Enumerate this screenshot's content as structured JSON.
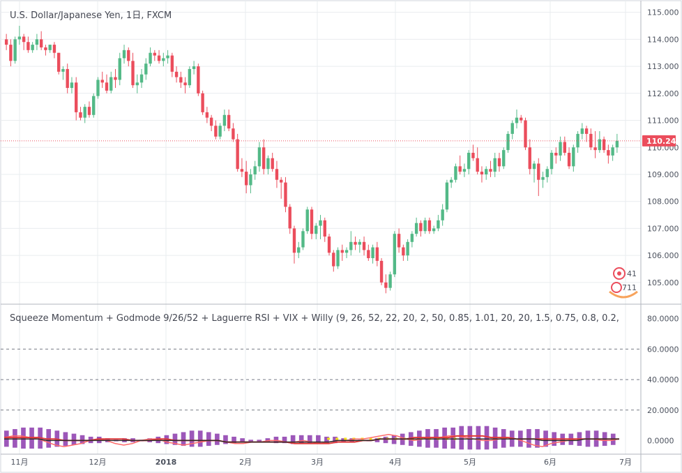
{
  "main_title": "U.S. Dollar/Japanese Yen, 1日, FXCM",
  "indicator_title": "Squeeze Momentum + Godmode 9/26/52 + Laguerre RSI + VIX + Willy (9, 26, 52, 22, 20, 2, 50, 0.85, 1.01, 20, 20, 1.5, 0.75, 0.8, 0.2,",
  "last_price_label": "110.241",
  "badges": {
    "top": "41",
    "bottom": "711"
  },
  "colors": {
    "up": "#53b987",
    "down": "#eb4d5c",
    "last_price": "#eb4d5c",
    "grid": "#e9ecef",
    "axis_line": "#b2b5be",
    "dash": "#787b86",
    "osc_a": "#2b2b2b",
    "osc_b": "#ff6b6b",
    "osc_c": "#e03a3a",
    "osc_d": "#3a8a3a",
    "osc_hist": "#7b1fa2",
    "yellow_dots": "#f5e11a"
  },
  "chart_data": [
    {
      "type": "candlestick",
      "title": "U.S. Dollar/Japanese Yen, 1日, FXCM",
      "ylim": [
        104.3,
        115.3
      ],
      "y_ticks": [
        "115.000",
        "114.000",
        "113.000",
        "112.000",
        "111.000",
        "110.000",
        "109.000",
        "108.000",
        "107.000",
        "106.000",
        "105.000"
      ],
      "x_ticks": [
        "11月",
        "12月",
        "2018",
        "2月",
        "3月",
        "4月",
        "5月",
        "6月",
        "7月"
      ],
      "last_price": 110.241,
      "candles": [
        [
          114.0,
          114.2,
          113.6,
          113.8
        ],
        [
          113.8,
          114.0,
          113.0,
          113.2
        ],
        [
          113.2,
          114.1,
          113.1,
          114.0
        ],
        [
          114.0,
          114.5,
          113.8,
          114.1
        ],
        [
          114.1,
          114.2,
          113.6,
          113.9
        ],
        [
          113.9,
          114.1,
          113.5,
          113.6
        ],
        [
          113.6,
          113.9,
          113.5,
          113.8
        ],
        [
          113.8,
          114.2,
          113.6,
          114.0
        ],
        [
          114.0,
          114.3,
          113.6,
          113.7
        ],
        [
          113.7,
          113.8,
          113.4,
          113.6
        ],
        [
          113.6,
          113.8,
          113.5,
          113.8
        ],
        [
          113.8,
          113.9,
          113.3,
          113.5
        ],
        [
          113.5,
          113.5,
          112.7,
          112.8
        ],
        [
          112.8,
          113.0,
          112.5,
          112.9
        ],
        [
          112.9,
          113.1,
          112.0,
          112.2
        ],
        [
          112.2,
          112.6,
          112.0,
          112.4
        ],
        [
          112.4,
          112.6,
          111.0,
          111.3
        ],
        [
          111.3,
          111.5,
          111.0,
          111.1
        ],
        [
          111.1,
          111.6,
          110.9,
          111.5
        ],
        [
          111.5,
          111.7,
          111.1,
          111.2
        ],
        [
          111.2,
          112.0,
          111.1,
          111.9
        ],
        [
          111.9,
          112.6,
          111.8,
          112.5
        ],
        [
          112.5,
          112.8,
          112.2,
          112.4
        ],
        [
          112.4,
          112.7,
          112.0,
          112.1
        ],
        [
          112.1,
          112.8,
          112.0,
          112.6
        ],
        [
          112.6,
          112.9,
          112.2,
          112.5
        ],
        [
          112.5,
          113.5,
          112.3,
          113.3
        ],
        [
          113.3,
          113.8,
          113.1,
          113.6
        ],
        [
          113.6,
          113.7,
          113.0,
          113.2
        ],
        [
          113.2,
          113.5,
          112.2,
          112.3
        ],
        [
          112.3,
          112.7,
          112.0,
          112.4
        ],
        [
          112.4,
          112.9,
          112.2,
          112.7
        ],
        [
          112.7,
          113.3,
          112.5,
          113.1
        ],
        [
          113.1,
          113.7,
          113.0,
          113.5
        ],
        [
          113.5,
          113.6,
          113.2,
          113.4
        ],
        [
          113.4,
          113.6,
          113.1,
          113.2
        ],
        [
          113.2,
          113.5,
          113.0,
          113.3
        ],
        [
          113.3,
          113.6,
          113.1,
          113.4
        ],
        [
          113.4,
          113.5,
          112.6,
          112.8
        ],
        [
          112.8,
          113.0,
          112.4,
          112.6
        ],
        [
          112.6,
          112.8,
          112.2,
          112.4
        ],
        [
          112.4,
          112.6,
          112.0,
          112.3
        ],
        [
          112.3,
          113.0,
          112.2,
          112.9
        ],
        [
          112.9,
          113.2,
          112.7,
          113.0
        ],
        [
          113.0,
          113.1,
          111.9,
          112.0
        ],
        [
          112.0,
          112.1,
          111.2,
          111.3
        ],
        [
          111.3,
          111.5,
          110.9,
          111.1
        ],
        [
          111.1,
          111.2,
          110.6,
          110.8
        ],
        [
          110.8,
          111.0,
          110.3,
          110.4
        ],
        [
          110.4,
          110.9,
          110.3,
          110.8
        ],
        [
          110.8,
          111.4,
          110.6,
          111.2
        ],
        [
          111.2,
          111.4,
          110.6,
          110.7
        ],
        [
          110.7,
          110.9,
          110.2,
          110.3
        ],
        [
          110.3,
          110.5,
          109.1,
          109.2
        ],
        [
          109.2,
          109.6,
          108.9,
          109.1
        ],
        [
          109.1,
          109.5,
          108.3,
          108.6
        ],
        [
          108.6,
          109.2,
          108.3,
          109.0
        ],
        [
          109.0,
          109.5,
          108.8,
          109.3
        ],
        [
          109.3,
          110.2,
          109.1,
          110.0
        ],
        [
          110.0,
          110.3,
          109.0,
          109.2
        ],
        [
          109.2,
          109.7,
          109.0,
          109.6
        ],
        [
          109.6,
          109.8,
          109.1,
          109.2
        ],
        [
          109.2,
          109.5,
          108.5,
          108.8
        ],
        [
          108.8,
          108.9,
          108.1,
          108.7
        ],
        [
          108.7,
          108.9,
          107.6,
          107.8
        ],
        [
          107.8,
          107.9,
          106.8,
          107.0
        ],
        [
          107.0,
          107.1,
          105.7,
          106.1
        ],
        [
          106.1,
          106.5,
          105.9,
          106.3
        ],
        [
          106.3,
          107.0,
          106.2,
          106.9
        ],
        [
          106.9,
          107.8,
          106.8,
          107.7
        ],
        [
          107.7,
          107.8,
          106.6,
          106.8
        ],
        [
          106.8,
          107.2,
          106.6,
          107.1
        ],
        [
          107.1,
          107.5,
          106.6,
          107.3
        ],
        [
          107.3,
          107.4,
          106.5,
          106.7
        ],
        [
          106.7,
          106.8,
          106.0,
          106.1
        ],
        [
          106.1,
          106.2,
          105.4,
          105.6
        ],
        [
          105.6,
          106.3,
          105.5,
          106.2
        ],
        [
          106.2,
          106.4,
          105.8,
          106.1
        ],
        [
          106.1,
          106.3,
          105.9,
          106.2
        ],
        [
          106.2,
          106.9,
          106.0,
          106.5
        ],
        [
          106.5,
          106.7,
          106.2,
          106.4
        ],
        [
          106.4,
          106.6,
          106.1,
          106.5
        ],
        [
          106.5,
          106.7,
          106.0,
          106.2
        ],
        [
          106.2,
          106.4,
          105.8,
          105.9
        ],
        [
          105.9,
          106.4,
          105.7,
          106.3
        ],
        [
          106.3,
          106.5,
          105.6,
          105.8
        ],
        [
          105.8,
          105.9,
          104.9,
          105.0
        ],
        [
          105.0,
          105.3,
          104.6,
          104.8
        ],
        [
          104.8,
          105.4,
          104.7,
          105.3
        ],
        [
          105.3,
          106.9,
          105.2,
          106.8
        ],
        [
          106.8,
          107.0,
          106.1,
          106.3
        ],
        [
          106.3,
          106.4,
          105.8,
          106.0
        ],
        [
          106.0,
          106.6,
          105.8,
          106.5
        ],
        [
          106.5,
          106.9,
          106.3,
          106.8
        ],
        [
          106.8,
          107.4,
          106.7,
          107.2
        ],
        [
          107.2,
          107.3,
          106.7,
          106.9
        ],
        [
          106.9,
          107.4,
          106.8,
          107.3
        ],
        [
          107.3,
          107.4,
          106.8,
          106.9
        ],
        [
          106.9,
          107.1,
          106.8,
          107.0
        ],
        [
          107.0,
          107.5,
          106.9,
          107.3
        ],
        [
          107.3,
          107.9,
          107.1,
          107.7
        ],
        [
          107.7,
          108.8,
          107.6,
          108.7
        ],
        [
          108.7,
          108.9,
          108.5,
          108.8
        ],
        [
          108.8,
          109.4,
          108.7,
          109.3
        ],
        [
          109.3,
          109.7,
          109.0,
          109.1
        ],
        [
          109.1,
          109.4,
          108.9,
          109.2
        ],
        [
          109.2,
          109.9,
          109.0,
          109.8
        ],
        [
          109.8,
          110.1,
          109.5,
          109.6
        ],
        [
          109.6,
          110.0,
          109.0,
          109.1
        ],
        [
          109.1,
          109.3,
          108.7,
          109.0
        ],
        [
          109.0,
          109.3,
          108.8,
          109.2
        ],
        [
          109.2,
          109.5,
          108.9,
          109.1
        ],
        [
          109.1,
          109.8,
          108.9,
          109.6
        ],
        [
          109.6,
          109.8,
          109.1,
          109.3
        ],
        [
          109.3,
          110.0,
          109.2,
          109.9
        ],
        [
          109.9,
          110.6,
          109.8,
          110.5
        ],
        [
          110.5,
          111.0,
          110.3,
          110.9
        ],
        [
          110.9,
          111.4,
          110.7,
          111.1
        ],
        [
          111.1,
          111.2,
          110.9,
          111.0
        ],
        [
          111.0,
          111.1,
          109.9,
          110.0
        ],
        [
          110.0,
          110.3,
          109.0,
          109.2
        ],
        [
          109.2,
          109.5,
          108.7,
          109.4
        ],
        [
          109.4,
          109.6,
          108.2,
          108.8
        ],
        [
          108.8,
          109.1,
          108.5,
          108.9
        ],
        [
          108.9,
          109.3,
          108.7,
          109.2
        ],
        [
          109.2,
          109.9,
          109.0,
          109.8
        ],
        [
          109.8,
          110.0,
          109.4,
          109.7
        ],
        [
          109.7,
          110.4,
          109.5,
          110.2
        ],
        [
          110.2,
          110.4,
          109.7,
          109.8
        ],
        [
          109.8,
          110.0,
          109.2,
          109.3
        ],
        [
          109.3,
          110.1,
          109.1,
          110.0
        ],
        [
          110.0,
          110.6,
          109.8,
          110.5
        ],
        [
          110.5,
          110.9,
          110.3,
          110.7
        ],
        [
          110.7,
          110.8,
          110.2,
          110.5
        ],
        [
          110.5,
          110.7,
          109.9,
          110.0
        ],
        [
          110.0,
          110.6,
          109.6,
          109.9
        ],
        [
          109.9,
          110.6,
          109.8,
          110.3
        ],
        [
          110.3,
          110.4,
          109.8,
          109.9
        ],
        [
          109.9,
          110.1,
          109.4,
          109.7
        ],
        [
          109.7,
          110.1,
          109.5,
          110.0
        ],
        [
          110.0,
          110.5,
          109.8,
          110.24
        ]
      ]
    },
    {
      "type": "line",
      "title": "Squeeze Momentum + Godmode 9/26/52 + Laguerre RSI + VIX + Willy (9, 26, 52, 22, 20, 2, 50, 0.85, 1.01, 20, 20, 1.5, 0.75, 0.8, 0.2,",
      "ylim": [
        -3,
        84
      ],
      "y_ticks": [
        "80.0000",
        "60.0000",
        "40.0000",
        "20.0000",
        "0.0000"
      ],
      "dashed_levels": [
        60,
        40,
        20
      ],
      "histogram": [
        6,
        7,
        8,
        8,
        8,
        7,
        6,
        5,
        4,
        3,
        2,
        2,
        1,
        0,
        -1,
        -1,
        0,
        1,
        2,
        3,
        4,
        5,
        6,
        6,
        5,
        4,
        3,
        2,
        1,
        0,
        0,
        -1,
        -2,
        -2,
        -3,
        -3,
        -3,
        -3,
        -2,
        -2,
        -1,
        -1,
        0,
        0,
        1,
        2,
        3,
        4,
        5,
        6,
        7,
        7,
        8,
        8,
        9,
        9,
        9,
        9,
        8,
        7,
        6,
        6,
        7,
        7,
        6,
        5,
        4,
        4,
        5,
        6,
        6,
        5,
        4
      ],
      "series": [
        {
          "values": [
            2,
            3,
            3,
            2,
            1,
            -1,
            -3,
            -4,
            -3,
            -2,
            0,
            1,
            0,
            -2,
            -3,
            -2,
            0,
            1,
            1,
            -1,
            -2,
            -3,
            -2,
            -1,
            0,
            0,
            -1,
            -2,
            -2,
            -1,
            -1,
            0,
            0,
            -1,
            -1,
            0,
            -1,
            -2,
            -1,
            0,
            0,
            1,
            1,
            2,
            3,
            4,
            3,
            1,
            0,
            1,
            2,
            2,
            3,
            3,
            2,
            1,
            0,
            0,
            1,
            2,
            1,
            -1,
            -3,
            -4,
            -2,
            -1,
            0,
            1,
            1,
            1,
            0,
            0,
            1
          ]
        },
        {
          "values": [
            2,
            2,
            2,
            2,
            2,
            1,
            1,
            0,
            0,
            0,
            0,
            1,
            1,
            1,
            1,
            0,
            0,
            0,
            1,
            1,
            0,
            0,
            0,
            0,
            0,
            0,
            -1,
            -1,
            -1,
            -1,
            -1,
            -1,
            -1,
            -1,
            -2,
            -2,
            -2,
            -2,
            -2,
            -1,
            -1,
            -1,
            0,
            0,
            1,
            1,
            1,
            1,
            2,
            2,
            2,
            2,
            2,
            3,
            3,
            3,
            3,
            2,
            2,
            2,
            1,
            1,
            1,
            1,
            1,
            1,
            1,
            1,
            1,
            1,
            1,
            1,
            1
          ]
        },
        {
          "values": [
            1,
            1,
            1,
            1,
            1,
            0,
            0,
            0,
            0,
            0,
            0,
            0,
            0,
            0,
            0,
            0,
            0,
            0,
            0,
            0,
            0,
            0,
            0,
            0,
            0,
            0,
            -1,
            -1,
            -1,
            -1,
            -1,
            -1,
            -1,
            -1,
            -1,
            -1,
            -1,
            -1,
            -1,
            0,
            0,
            0,
            0,
            0,
            1,
            1,
            1,
            1,
            1,
            1,
            1,
            1,
            1,
            1,
            1,
            1,
            1,
            1,
            1,
            1,
            1,
            1,
            1,
            0,
            0,
            0,
            0,
            0,
            1,
            1,
            1,
            1,
            1
          ]
        }
      ]
    }
  ]
}
